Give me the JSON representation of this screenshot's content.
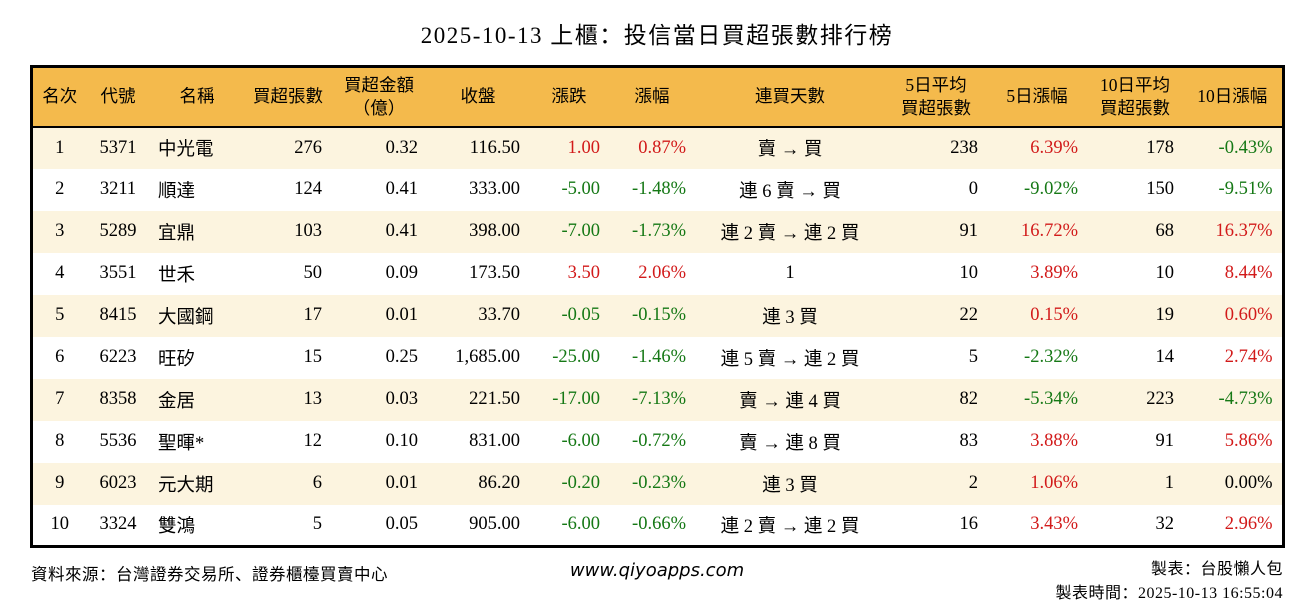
{
  "title": "2025-10-13 上櫃：投信當日買超張數排行榜",
  "colors": {
    "header_bg": "#F4BA4C",
    "row_alt_bg": "#FCF4DF",
    "up_red": "#D21A1A",
    "down_green": "#157815",
    "border": "#000000"
  },
  "chart_data": {
    "type": "table",
    "title": "2025-10-13 上櫃：投信當日買超張數排行榜",
    "columns": [
      {
        "key": "rank",
        "label": "名次",
        "align": "center"
      },
      {
        "key": "code",
        "label": "代號",
        "align": "center"
      },
      {
        "key": "name",
        "label": "名稱",
        "align": "left"
      },
      {
        "key": "net_buy",
        "label": "買超張數",
        "align": "right"
      },
      {
        "key": "amount",
        "label": "買超金額\n（億）",
        "align": "right"
      },
      {
        "key": "close",
        "label": "收盤",
        "align": "right"
      },
      {
        "key": "change",
        "label": "漲跌",
        "align": "right"
      },
      {
        "key": "pct",
        "label": "漲幅",
        "align": "right"
      },
      {
        "key": "streak",
        "label": "連買天數",
        "align": "center"
      },
      {
        "key": "avg5",
        "label": "5日平均\n買超張數",
        "align": "right"
      },
      {
        "key": "pct5",
        "label": "5日漲幅",
        "align": "right"
      },
      {
        "key": "avg10",
        "label": "10日平均\n買超張數",
        "align": "right"
      },
      {
        "key": "pct10",
        "label": "10日漲幅",
        "align": "right"
      }
    ],
    "rows": [
      {
        "rank": "1",
        "code": "5371",
        "name": "中光電",
        "net_buy": "276",
        "amount": "0.32",
        "close": "116.50",
        "change": "1.00",
        "pct": "0.87%",
        "streak": "賣 → 買",
        "avg5": "238",
        "pct5": "6.39%",
        "avg10": "178",
        "pct10": "-0.43%",
        "colors": {
          "change": "red",
          "pct": "red",
          "pct5": "red",
          "pct10": "green"
        }
      },
      {
        "rank": "2",
        "code": "3211",
        "name": "順達",
        "net_buy": "124",
        "amount": "0.41",
        "close": "333.00",
        "change": "-5.00",
        "pct": "-1.48%",
        "streak": "連 6 賣 → 買",
        "avg5": "0",
        "pct5": "-9.02%",
        "avg10": "150",
        "pct10": "-9.51%",
        "colors": {
          "change": "green",
          "pct": "green",
          "pct5": "green",
          "pct10": "green"
        }
      },
      {
        "rank": "3",
        "code": "5289",
        "name": "宜鼎",
        "net_buy": "103",
        "amount": "0.41",
        "close": "398.00",
        "change": "-7.00",
        "pct": "-1.73%",
        "streak": "連 2 賣 → 連 2 買",
        "avg5": "91",
        "pct5": "16.72%",
        "avg10": "68",
        "pct10": "16.37%",
        "colors": {
          "change": "green",
          "pct": "green",
          "pct5": "red",
          "pct10": "red"
        }
      },
      {
        "rank": "4",
        "code": "3551",
        "name": "世禾",
        "net_buy": "50",
        "amount": "0.09",
        "close": "173.50",
        "change": "3.50",
        "pct": "2.06%",
        "streak": "1",
        "avg5": "10",
        "pct5": "3.89%",
        "avg10": "10",
        "pct10": "8.44%",
        "colors": {
          "change": "red",
          "pct": "red",
          "pct5": "red",
          "pct10": "red"
        }
      },
      {
        "rank": "5",
        "code": "8415",
        "name": "大國鋼",
        "net_buy": "17",
        "amount": "0.01",
        "close": "33.70",
        "change": "-0.05",
        "pct": "-0.15%",
        "streak": "連 3 買",
        "avg5": "22",
        "pct5": "0.15%",
        "avg10": "19",
        "pct10": "0.60%",
        "colors": {
          "change": "green",
          "pct": "green",
          "pct5": "red",
          "pct10": "red"
        }
      },
      {
        "rank": "6",
        "code": "6223",
        "name": "旺矽",
        "net_buy": "15",
        "amount": "0.25",
        "close": "1,685.00",
        "change": "-25.00",
        "pct": "-1.46%",
        "streak": "連 5 賣 → 連 2 買",
        "avg5": "5",
        "pct5": "-2.32%",
        "avg10": "14",
        "pct10": "2.74%",
        "colors": {
          "change": "green",
          "pct": "green",
          "pct5": "green",
          "pct10": "red"
        }
      },
      {
        "rank": "7",
        "code": "8358",
        "name": "金居",
        "net_buy": "13",
        "amount": "0.03",
        "close": "221.50",
        "change": "-17.00",
        "pct": "-7.13%",
        "streak": "賣 → 連 4 買",
        "avg5": "82",
        "pct5": "-5.34%",
        "avg10": "223",
        "pct10": "-4.73%",
        "colors": {
          "change": "green",
          "pct": "green",
          "pct5": "green",
          "pct10": "green"
        }
      },
      {
        "rank": "8",
        "code": "5536",
        "name": "聖暉*",
        "net_buy": "12",
        "amount": "0.10",
        "close": "831.00",
        "change": "-6.00",
        "pct": "-0.72%",
        "streak": "賣 → 連 8 買",
        "avg5": "83",
        "pct5": "3.88%",
        "avg10": "91",
        "pct10": "5.86%",
        "colors": {
          "change": "green",
          "pct": "green",
          "pct5": "red",
          "pct10": "red"
        }
      },
      {
        "rank": "9",
        "code": "6023",
        "name": "元大期",
        "net_buy": "6",
        "amount": "0.01",
        "close": "86.20",
        "change": "-0.20",
        "pct": "-0.23%",
        "streak": "連 3 買",
        "avg5": "2",
        "pct5": "1.06%",
        "avg10": "1",
        "pct10": "0.00%",
        "colors": {
          "change": "green",
          "pct": "green",
          "pct5": "red"
        }
      },
      {
        "rank": "10",
        "code": "3324",
        "name": "雙鴻",
        "net_buy": "5",
        "amount": "0.05",
        "close": "905.00",
        "change": "-6.00",
        "pct": "-0.66%",
        "streak": "連 2 賣 → 連 2 買",
        "avg5": "16",
        "pct5": "3.43%",
        "avg10": "32",
        "pct10": "2.96%",
        "colors": {
          "change": "green",
          "pct": "green",
          "pct5": "red",
          "pct10": "red"
        }
      }
    ]
  },
  "footer": {
    "source": "資料來源：台灣證券交易所、證券櫃檯買賣中心",
    "website": "www.qiyoapps.com",
    "made_by": "製表：台股懶人包",
    "made_time": "製表時間：2025-10-13 16:55:04"
  }
}
